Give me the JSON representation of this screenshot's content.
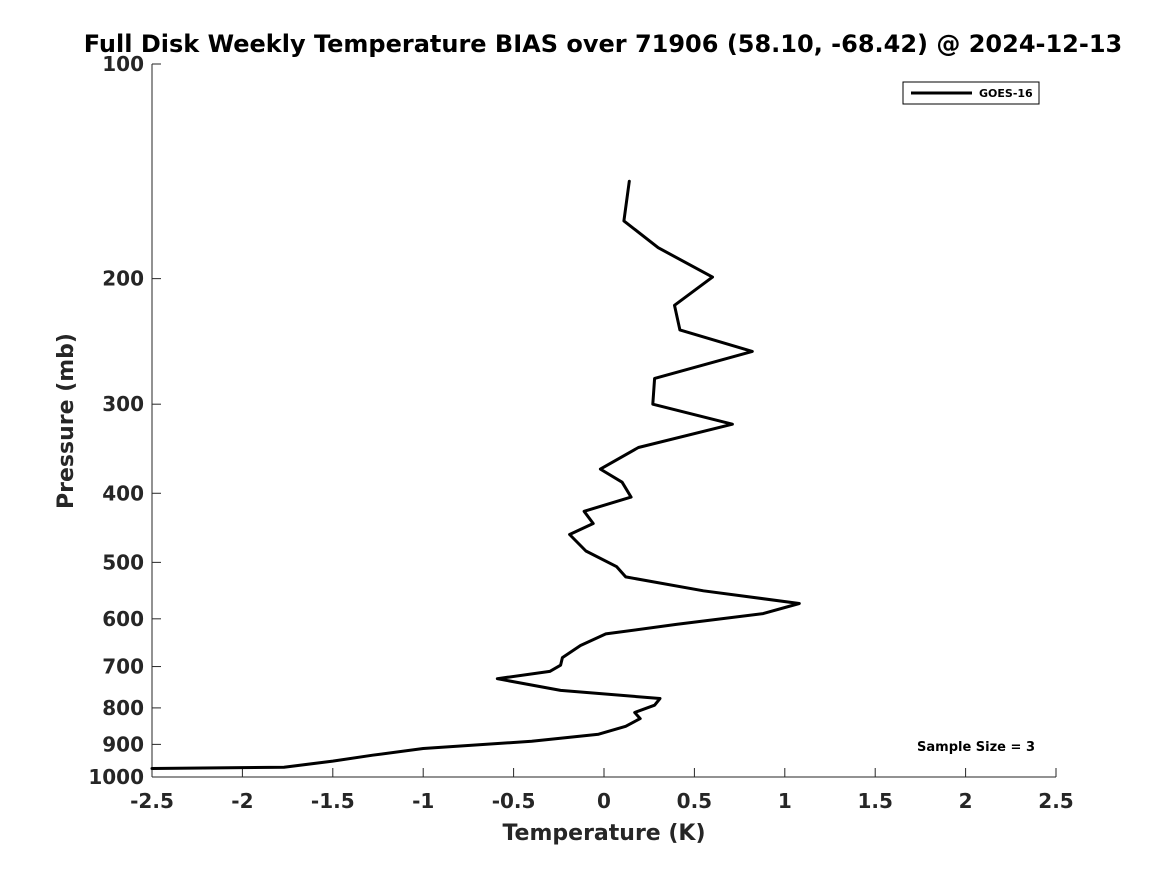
{
  "chart_data": {
    "type": "line",
    "title": "Full Disk Weekly Temperature BIAS over 71906 (58.10, -68.42) @ 2024-12-13",
    "xlabel": "Temperature (K)",
    "ylabel": "Pressure (mb)",
    "xlim": [
      -2.5,
      2.5
    ],
    "ylim": [
      100,
      1000
    ],
    "y_scale": "log",
    "y_reversed": true,
    "grid": false,
    "legend_position": "top-right",
    "x_ticks": [
      "-2.5",
      "-2",
      "-1.5",
      "-1",
      "-0.5",
      "0",
      "0.5",
      "1",
      "1.5",
      "2",
      "2.5"
    ],
    "x_tick_values": [
      -2.5,
      -2,
      -1.5,
      -1,
      -0.5,
      0,
      0.5,
      1,
      1.5,
      2,
      2.5
    ],
    "y_ticks": [
      "100",
      "200",
      "300",
      "400",
      "500",
      "600",
      "700",
      "800",
      "900",
      "1000"
    ],
    "y_tick_values": [
      100,
      200,
      300,
      400,
      500,
      600,
      700,
      800,
      900,
      1000
    ],
    "series": [
      {
        "name": "GOES-16",
        "color": "#000000",
        "points": [
          {
            "x": 0.14,
            "y": 146
          },
          {
            "x": 0.11,
            "y": 166
          },
          {
            "x": 0.3,
            "y": 181
          },
          {
            "x": 0.6,
            "y": 199
          },
          {
            "x": 0.39,
            "y": 218
          },
          {
            "x": 0.42,
            "y": 236
          },
          {
            "x": 0.82,
            "y": 253
          },
          {
            "x": 0.28,
            "y": 276
          },
          {
            "x": 0.27,
            "y": 300
          },
          {
            "x": 0.71,
            "y": 320
          },
          {
            "x": 0.19,
            "y": 345
          },
          {
            "x": -0.02,
            "y": 370
          },
          {
            "x": 0.1,
            "y": 386
          },
          {
            "x": 0.15,
            "y": 405
          },
          {
            "x": -0.11,
            "y": 424
          },
          {
            "x": -0.06,
            "y": 441
          },
          {
            "x": -0.19,
            "y": 457
          },
          {
            "x": -0.1,
            "y": 482
          },
          {
            "x": 0.07,
            "y": 507
          },
          {
            "x": 0.12,
            "y": 524
          },
          {
            "x": 0.55,
            "y": 548
          },
          {
            "x": 1.08,
            "y": 571
          },
          {
            "x": 0.88,
            "y": 590
          },
          {
            "x": 0.4,
            "y": 611
          },
          {
            "x": 0.01,
            "y": 630
          },
          {
            "x": -0.13,
            "y": 654
          },
          {
            "x": -0.23,
            "y": 680
          },
          {
            "x": -0.24,
            "y": 697
          },
          {
            "x": -0.3,
            "y": 711
          },
          {
            "x": -0.59,
            "y": 728
          },
          {
            "x": -0.24,
            "y": 756
          },
          {
            "x": 0.31,
            "y": 776
          },
          {
            "x": 0.28,
            "y": 793
          },
          {
            "x": 0.17,
            "y": 812
          },
          {
            "x": 0.2,
            "y": 828
          },
          {
            "x": 0.12,
            "y": 849
          },
          {
            "x": -0.03,
            "y": 871
          },
          {
            "x": -0.4,
            "y": 891
          },
          {
            "x": -1.0,
            "y": 912
          },
          {
            "x": -1.28,
            "y": 932
          },
          {
            "x": -1.5,
            "y": 950
          },
          {
            "x": -1.77,
            "y": 969
          },
          {
            "x": -2.5,
            "y": 973
          }
        ]
      }
    ],
    "annotations": [
      {
        "text": "Sample Size = 3",
        "position": "bottom-right"
      }
    ]
  }
}
